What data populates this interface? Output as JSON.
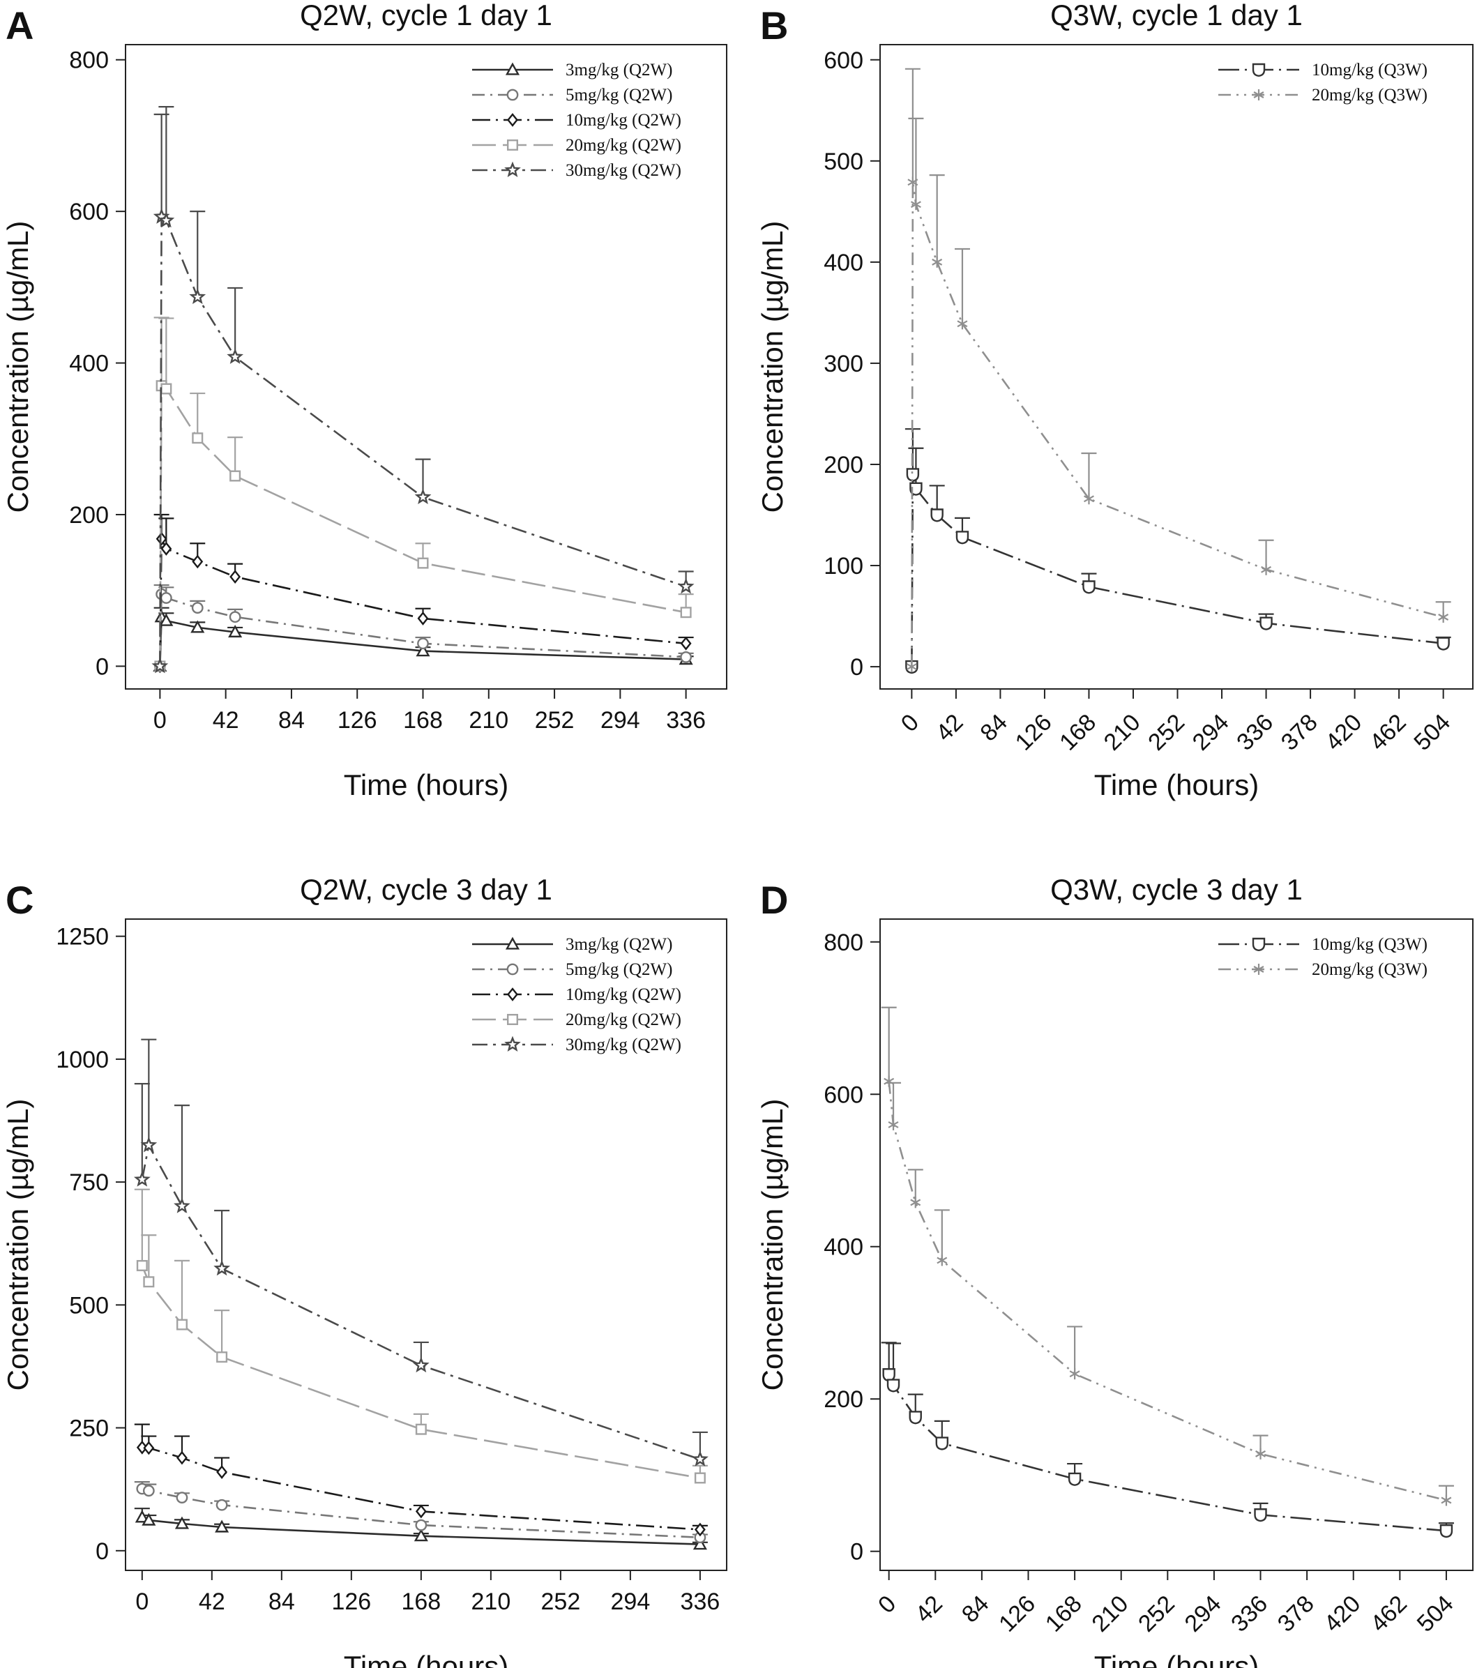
{
  "chart_data": [
    {
      "type": "line",
      "panel_label": "A",
      "title": "Q2W, cycle 1 day 1",
      "xlabel": "Time (hours)",
      "ylabel": "Concentration (µg/mL)",
      "xlim": [
        -22,
        362
      ],
      "ylim": [
        -30,
        820
      ],
      "xticks": [
        0,
        42,
        84,
        126,
        168,
        210,
        252,
        294,
        336
      ],
      "xtick_labels": [
        "0",
        "42",
        "84",
        "126",
        "168",
        "210",
        "252",
        "294",
        "336"
      ],
      "yticks": [
        0,
        200,
        400,
        600,
        800
      ],
      "ytick_labels": [
        "0",
        "200",
        "400",
        "600",
        "800"
      ],
      "xtick_rotate": false,
      "legend_position": "top-right",
      "series": [
        {
          "name": "3mg/kg (Q2W)",
          "marker": "triangle",
          "color": "#2b2b2b",
          "dash": "",
          "x": [
            0,
            1,
            4,
            24,
            48,
            168,
            336
          ],
          "y": [
            0,
            65,
            60,
            51,
            45,
            20,
            9
          ],
          "err": [
            0,
            12,
            10,
            7,
            6,
            5,
            4
          ]
        },
        {
          "name": "5mg/kg (Q2W)",
          "marker": "circle",
          "color": "#777777",
          "dash": "18,8,3,8",
          "x": [
            0,
            1,
            4,
            24,
            48,
            168,
            336
          ],
          "y": [
            0,
            95,
            90,
            77,
            65,
            30,
            12
          ],
          "err": [
            0,
            12,
            14,
            9,
            10,
            8,
            5
          ]
        },
        {
          "name": "10mg/kg (Q2W)",
          "marker": "diamond",
          "color": "#1a1a1a",
          "dash": "26,8,3,8",
          "x": [
            0,
            1,
            4,
            24,
            48,
            168,
            336
          ],
          "y": [
            0,
            168,
            155,
            138,
            118,
            63,
            30
          ],
          "err": [
            0,
            32,
            40,
            24,
            17,
            13,
            8
          ]
        },
        {
          "name": "20mg/kg (Q2W)",
          "marker": "square",
          "color": "#a2a2a2",
          "dash": "34,10",
          "x": [
            0,
            1,
            4,
            24,
            48,
            168,
            336
          ],
          "y": [
            0,
            370,
            366,
            301,
            251,
            136,
            71
          ],
          "err": [
            0,
            90,
            93,
            59,
            51,
            26,
            24
          ]
        },
        {
          "name": "30mg/kg (Q2W)",
          "marker": "star",
          "color": "#4a4a4a",
          "dash": "22,8,4,8",
          "x": [
            0,
            1,
            4,
            24,
            48,
            168,
            336
          ],
          "y": [
            0,
            593,
            588,
            487,
            408,
            223,
            105
          ],
          "err": [
            0,
            135,
            150,
            113,
            91,
            50,
            20
          ]
        }
      ]
    },
    {
      "type": "line",
      "panel_label": "B",
      "title": "Q3W, cycle 1 day 1",
      "xlabel": "Time (hours)",
      "ylabel": "Concentration (µg/mL)",
      "xlim": [
        -30,
        532
      ],
      "ylim": [
        -22,
        615
      ],
      "xticks": [
        0,
        42,
        84,
        126,
        168,
        210,
        252,
        294,
        336,
        378,
        420,
        462,
        504
      ],
      "xtick_labels": [
        "0",
        "42",
        "84",
        "126",
        "168",
        "210",
        "252",
        "294",
        "336",
        "378",
        "420",
        "462",
        "504"
      ],
      "yticks": [
        0,
        100,
        200,
        300,
        400,
        500,
        600
      ],
      "ytick_labels": [
        "0",
        "100",
        "200",
        "300",
        "400",
        "500",
        "600"
      ],
      "xtick_rotate": true,
      "legend_position": "top-right",
      "series": [
        {
          "name": "10mg/kg (Q3W)",
          "marker": "shield",
          "color": "#333333",
          "dash": "30,8,3,8",
          "x": [
            0,
            1,
            4,
            24,
            48,
            168,
            336,
            504
          ],
          "y": [
            0,
            190,
            176,
            150,
            128,
            79,
            43,
            23
          ],
          "err": [
            0,
            45,
            40,
            29,
            19,
            13,
            9,
            6
          ]
        },
        {
          "name": "20mg/kg (Q3W)",
          "marker": "asterisk",
          "color": "#8f8f8f",
          "dash": "18,8,3,8,3,8",
          "x": [
            0,
            1,
            4,
            24,
            48,
            168,
            336,
            504
          ],
          "y": [
            0,
            479,
            457,
            400,
            339,
            166,
            96,
            49
          ],
          "err": [
            0,
            112,
            85,
            86,
            74,
            45,
            29,
            15
          ]
        }
      ]
    },
    {
      "type": "line",
      "panel_label": "C",
      "title": "Q2W, cycle 3 day 1",
      "xlabel": "Time (hours)",
      "ylabel": "Concentration (µg/mL)",
      "xlim": [
        -10,
        352
      ],
      "ylim": [
        -40,
        1285
      ],
      "xticks": [
        0,
        42,
        84,
        126,
        168,
        210,
        252,
        294,
        336
      ],
      "xtick_labels": [
        "0",
        "42",
        "84",
        "126",
        "168",
        "210",
        "252",
        "294",
        "336"
      ],
      "yticks": [
        0,
        250,
        500,
        750,
        1000,
        1250
      ],
      "ytick_labels": [
        "0",
        "250",
        "500",
        "750",
        "1000",
        "1250"
      ],
      "xtick_rotate": false,
      "legend_position": "top-right",
      "series": [
        {
          "name": "3mg/kg (Q2W)",
          "marker": "triangle",
          "color": "#2b2b2b",
          "dash": "",
          "x": [
            0,
            4,
            24,
            48,
            168,
            336
          ],
          "y": [
            68,
            62,
            55,
            48,
            30,
            13
          ],
          "err": [
            18,
            10,
            8,
            6,
            5,
            4
          ]
        },
        {
          "name": "5mg/kg (Q2W)",
          "marker": "circle",
          "color": "#777777",
          "dash": "18,8,3,8",
          "x": [
            0,
            4,
            24,
            48,
            168,
            336
          ],
          "y": [
            126,
            122,
            108,
            93,
            52,
            27
          ],
          "err": [
            14,
            13,
            9,
            8,
            7,
            6
          ]
        },
        {
          "name": "10mg/kg (Q2W)",
          "marker": "diamond",
          "color": "#1a1a1a",
          "dash": "26,8,3,8",
          "x": [
            0,
            4,
            24,
            48,
            168,
            336
          ],
          "y": [
            210,
            209,
            189,
            160,
            80,
            43
          ],
          "err": [
            47,
            24,
            44,
            29,
            12,
            8
          ]
        },
        {
          "name": "20mg/kg (Q2W)",
          "marker": "square",
          "color": "#a2a2a2",
          "dash": "34,10",
          "x": [
            0,
            4,
            24,
            48,
            168,
            336
          ],
          "y": [
            580,
            547,
            460,
            394,
            247,
            148
          ],
          "err": [
            155,
            95,
            130,
            95,
            31,
            25
          ]
        },
        {
          "name": "30mg/kg (Q2W)",
          "marker": "star",
          "color": "#4a4a4a",
          "dash": "22,8,4,8",
          "x": [
            0,
            4,
            24,
            48,
            168,
            336
          ],
          "y": [
            755,
            825,
            701,
            574,
            377,
            186
          ],
          "err": [
            195,
            215,
            205,
            118,
            47,
            55
          ]
        }
      ]
    },
    {
      "type": "line",
      "panel_label": "D",
      "title": "Q3W, cycle 3 day 1",
      "xlabel": "Time (hours)",
      "ylabel": "Concentration (µg/mL)",
      "xlim": [
        -8,
        528
      ],
      "ylim": [
        -25,
        830
      ],
      "xticks": [
        0,
        42,
        84,
        126,
        168,
        210,
        252,
        294,
        336,
        378,
        420,
        462,
        504
      ],
      "xtick_labels": [
        "0",
        "42",
        "84",
        "126",
        "168",
        "210",
        "252",
        "294",
        "336",
        "378",
        "420",
        "462",
        "504"
      ],
      "yticks": [
        0,
        200,
        400,
        600,
        800
      ],
      "ytick_labels": [
        "0",
        "200",
        "400",
        "600",
        "800"
      ],
      "xtick_rotate": true,
      "legend_position": "top-right",
      "series": [
        {
          "name": "10mg/kg (Q3W)",
          "marker": "shield",
          "color": "#333333",
          "dash": "30,8,3,8",
          "x": [
            0,
            4,
            24,
            48,
            168,
            336,
            504
          ],
          "y": [
            232,
            218,
            176,
            142,
            95,
            48,
            27
          ],
          "err": [
            42,
            55,
            30,
            29,
            20,
            15,
            10
          ]
        },
        {
          "name": "20mg/kg (Q3W)",
          "marker": "asterisk",
          "color": "#8f8f8f",
          "dash": "18,8,3,8,3,8",
          "x": [
            0,
            4,
            24,
            48,
            168,
            336,
            504
          ],
          "y": [
            617,
            560,
            458,
            382,
            233,
            128,
            67
          ],
          "err": [
            97,
            55,
            43,
            66,
            62,
            24,
            19
          ]
        }
      ]
    }
  ]
}
